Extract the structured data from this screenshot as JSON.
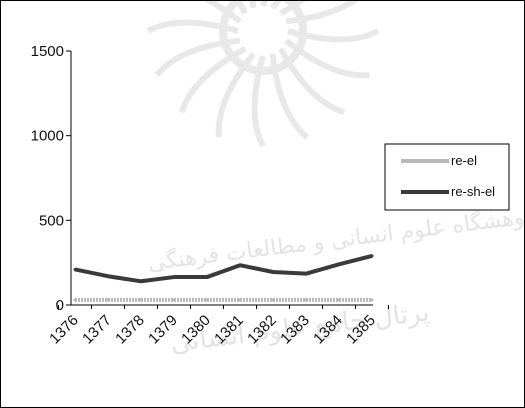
{
  "chart_data": {
    "type": "line",
    "title": "",
    "xlabel": "",
    "ylabel": "",
    "x": [
      "1376",
      "1377",
      "1378",
      "1379",
      "1380",
      "1381",
      "1382",
      "1383",
      "1384",
      "1385"
    ],
    "ylim": [
      0,
      1500
    ],
    "yticks": [
      "0",
      "500",
      "1000",
      "1500"
    ],
    "grid": false,
    "legend_position": "right",
    "watermark_text": [
      "پژوهشگاه علوم انسانی و مطالعات فرهنگی",
      "پرتال جامع علوم انسانی"
    ],
    "series": [
      {
        "name": "re-el",
        "color": "#b8b8b8",
        "values": [
          30,
          30,
          30,
          30,
          30,
          30,
          30,
          30,
          30,
          30
        ]
      },
      {
        "name": "re-sh-el",
        "color": "#3a3a3a",
        "values": [
          210,
          170,
          140,
          165,
          165,
          235,
          195,
          185,
          240,
          290
        ]
      }
    ]
  }
}
